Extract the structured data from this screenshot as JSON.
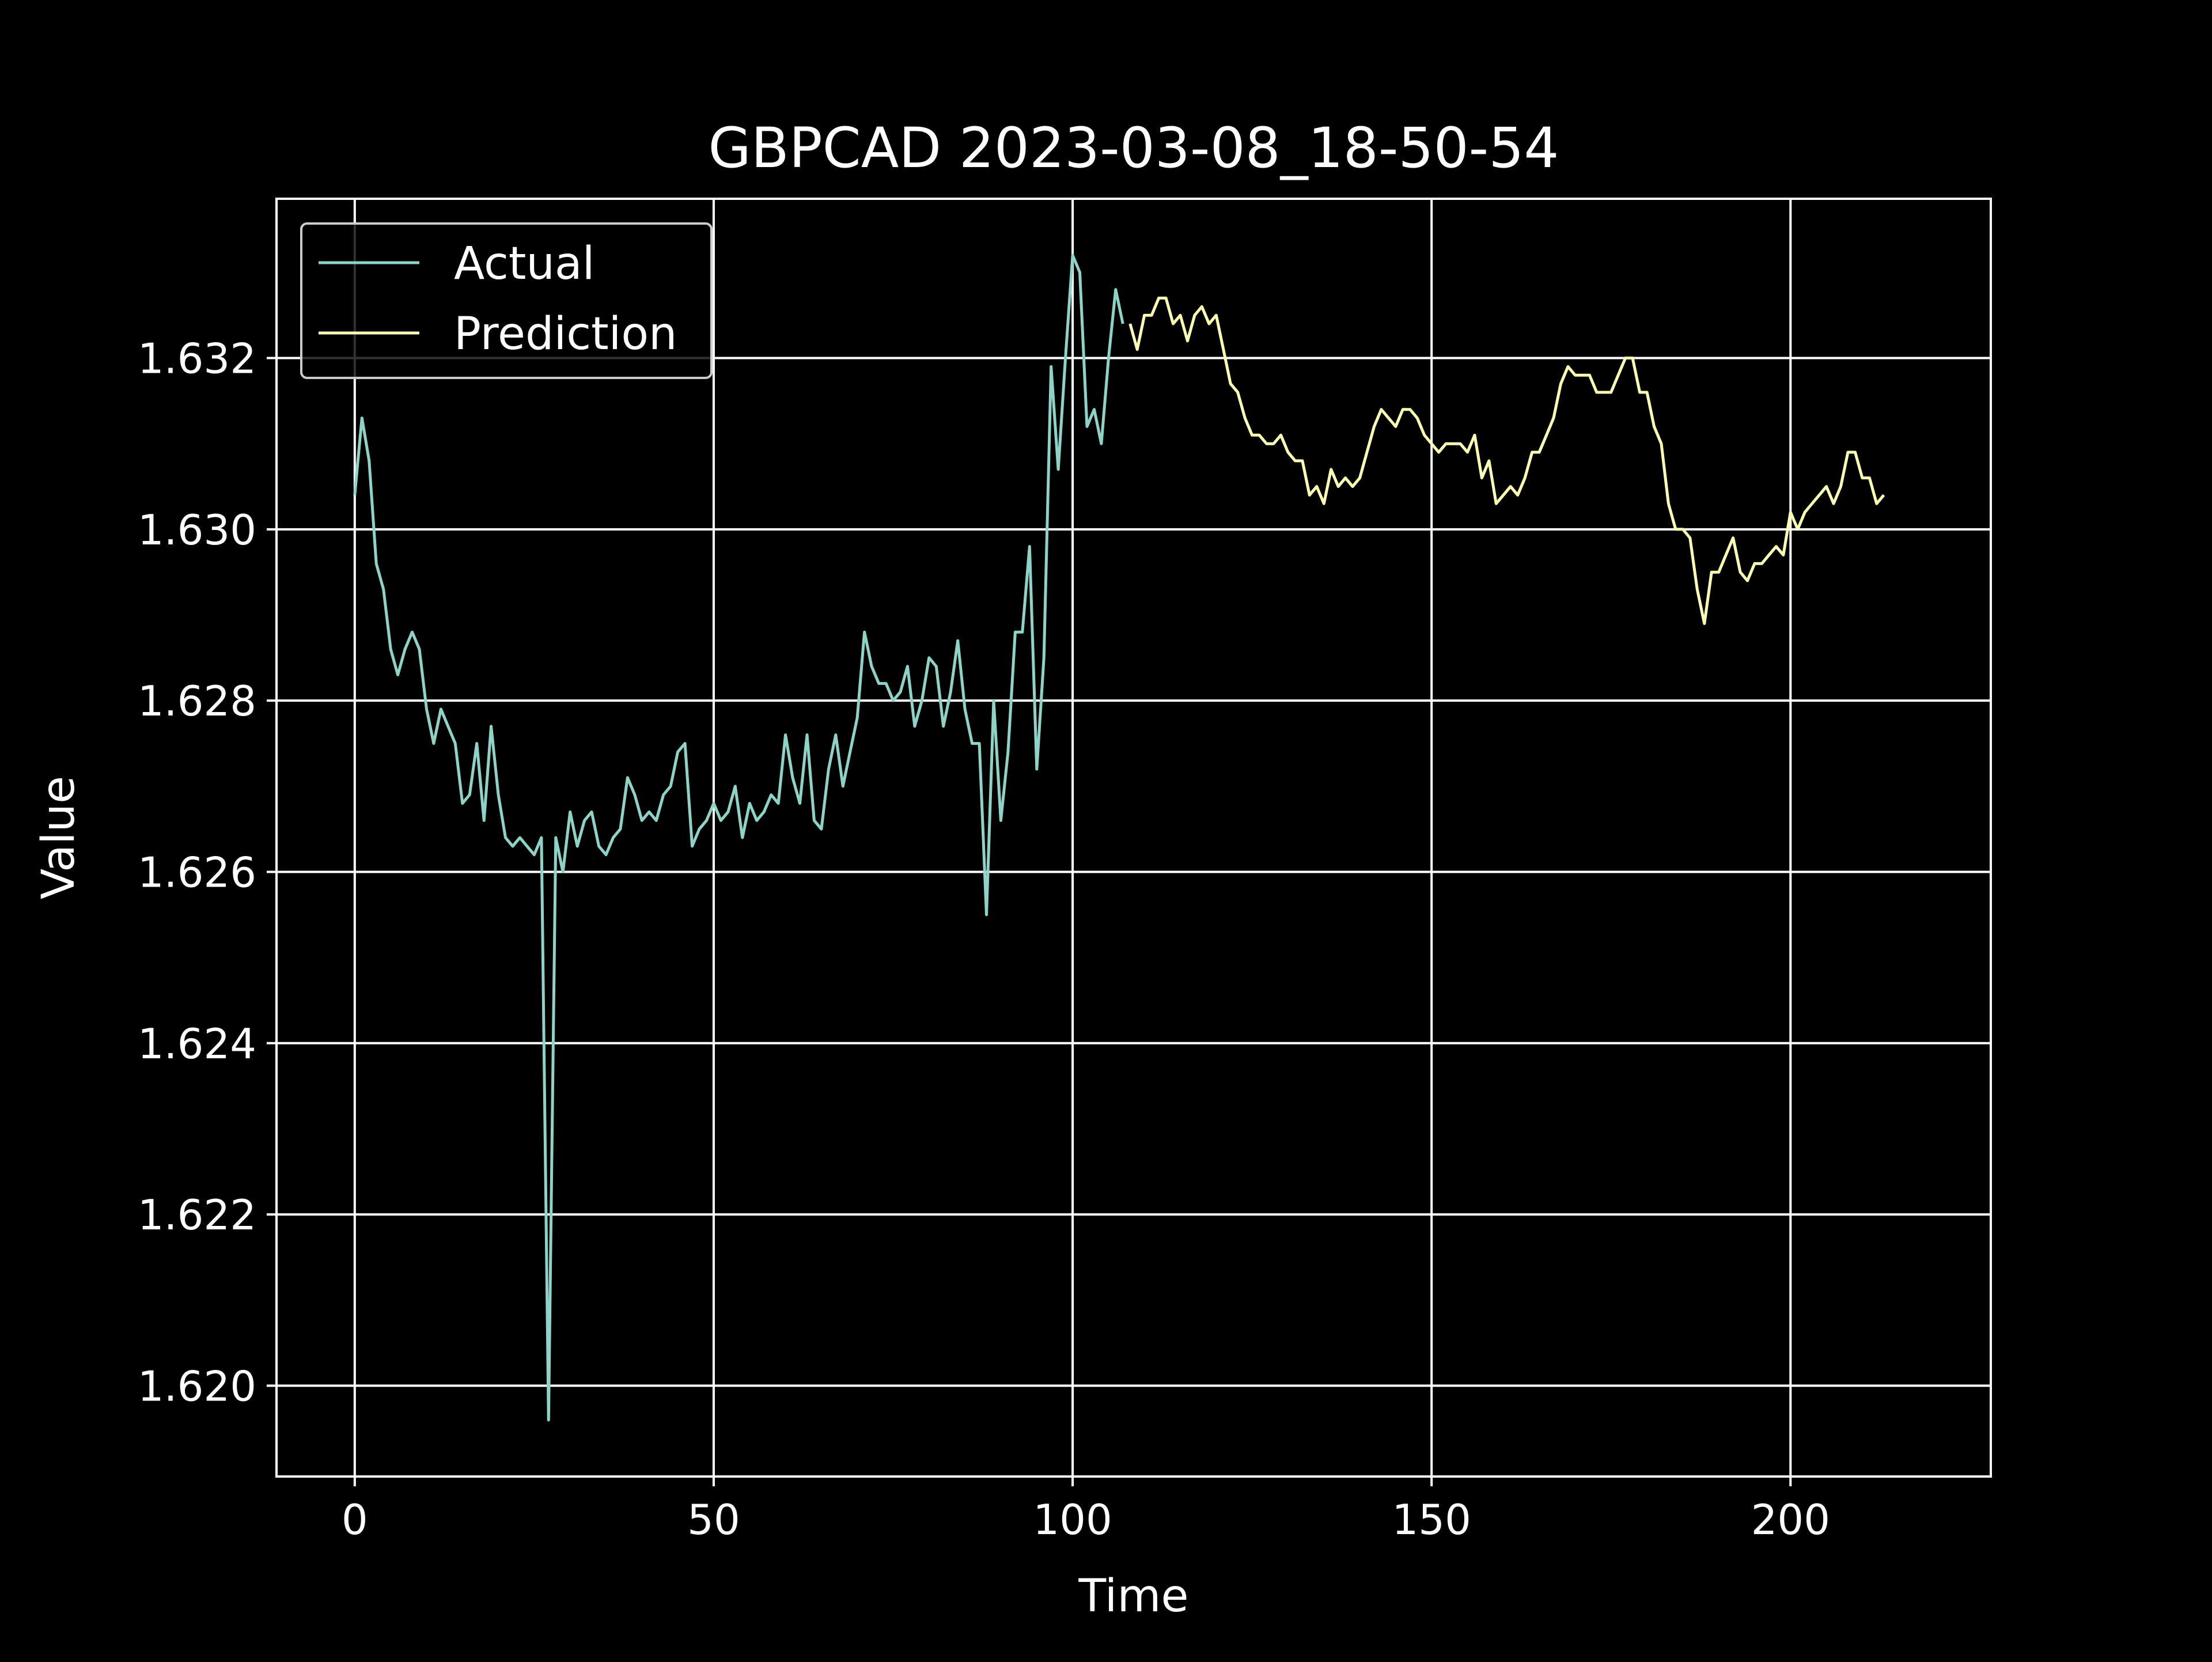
{
  "chart_data": {
    "type": "line",
    "title": "GBPCAD 2023-03-08_18-50-54",
    "xlabel": "Time",
    "ylabel": "Value",
    "xlim": [
      -10.9,
      227.9
    ],
    "ylim": [
      1.61894,
      1.63386
    ],
    "xticks": [
      0,
      50,
      100,
      150,
      200
    ],
    "xtick_labels": [
      "0",
      "50",
      "100",
      "150",
      "200"
    ],
    "yticks": [
      1.62,
      1.622,
      1.624,
      1.626,
      1.628,
      1.63,
      1.632
    ],
    "ytick_labels": [
      "1.620",
      "1.622",
      "1.624",
      "1.626",
      "1.628",
      "1.630",
      "1.632"
    ],
    "grid": true,
    "legend_position": "top-left",
    "series": [
      {
        "name": "Actual",
        "color": "#8dd3c7",
        "x_start": 0,
        "values": [
          1.6304,
          1.6313,
          1.6308,
          1.6296,
          1.6293,
          1.6286,
          1.6283,
          1.6286,
          1.6288,
          1.6286,
          1.6279,
          1.6275,
          1.6279,
          1.6277,
          1.6275,
          1.6268,
          1.6269,
          1.6275,
          1.6266,
          1.6277,
          1.6269,
          1.6264,
          1.6263,
          1.6264,
          1.6263,
          1.6262,
          1.6264,
          1.6196,
          1.6264,
          1.626,
          1.6267,
          1.6263,
          1.6266,
          1.6267,
          1.6263,
          1.6262,
          1.6264,
          1.6265,
          1.6271,
          1.6269,
          1.6266,
          1.6267,
          1.6266,
          1.6269,
          1.627,
          1.6274,
          1.6275,
          1.6263,
          1.6265,
          1.6266,
          1.6268,
          1.6266,
          1.6267,
          1.627,
          1.6264,
          1.6268,
          1.6266,
          1.6267,
          1.6269,
          1.6268,
          1.6276,
          1.6271,
          1.6268,
          1.6276,
          1.6266,
          1.6265,
          1.6272,
          1.6276,
          1.627,
          1.6274,
          1.6278,
          1.6288,
          1.6284,
          1.6282,
          1.6282,
          1.628,
          1.6281,
          1.6284,
          1.6277,
          1.628,
          1.6285,
          1.6284,
          1.6277,
          1.6281,
          1.6287,
          1.6279,
          1.6275,
          1.6275,
          1.6255,
          1.628,
          1.6266,
          1.6274,
          1.6288,
          1.6288,
          1.6298,
          1.6272,
          1.6285,
          1.6319,
          1.6307,
          1.632,
          1.6332,
          1.633,
          1.6312,
          1.6314,
          1.631,
          1.632,
          1.6328,
          1.6324
        ]
      },
      {
        "name": "Prediction",
        "color": "#ffffb3",
        "x_start": 108,
        "values": [
          1.6324,
          1.6321,
          1.6325,
          1.6325,
          1.6327,
          1.6327,
          1.6324,
          1.6325,
          1.6322,
          1.6325,
          1.6326,
          1.6324,
          1.6325,
          1.6321,
          1.6317,
          1.6316,
          1.6313,
          1.6311,
          1.6311,
          1.631,
          1.631,
          1.6311,
          1.6309,
          1.6308,
          1.6308,
          1.6304,
          1.6305,
          1.6303,
          1.6307,
          1.6305,
          1.6306,
          1.6305,
          1.6306,
          1.6309,
          1.6312,
          1.6314,
          1.6313,
          1.6312,
          1.6314,
          1.6314,
          1.6313,
          1.6311,
          1.631,
          1.6309,
          1.631,
          1.631,
          1.631,
          1.6309,
          1.6311,
          1.6306,
          1.6308,
          1.6303,
          1.6304,
          1.6305,
          1.6304,
          1.6306,
          1.6309,
          1.6309,
          1.6311,
          1.6313,
          1.6317,
          1.6319,
          1.6318,
          1.6318,
          1.6318,
          1.6316,
          1.6316,
          1.6316,
          1.6318,
          1.632,
          1.632,
          1.6316,
          1.6316,
          1.6312,
          1.631,
          1.6303,
          1.63,
          1.63,
          1.6299,
          1.6293,
          1.6289,
          1.6295,
          1.6295,
          1.6297,
          1.6299,
          1.6295,
          1.6294,
          1.6296,
          1.6296,
          1.6297,
          1.6298,
          1.6297,
          1.6302,
          1.63,
          1.6302,
          1.6303,
          1.6304,
          1.6305,
          1.6303,
          1.6305,
          1.6309,
          1.6309,
          1.6306,
          1.6306,
          1.6303,
          1.6304
        ]
      }
    ]
  }
}
